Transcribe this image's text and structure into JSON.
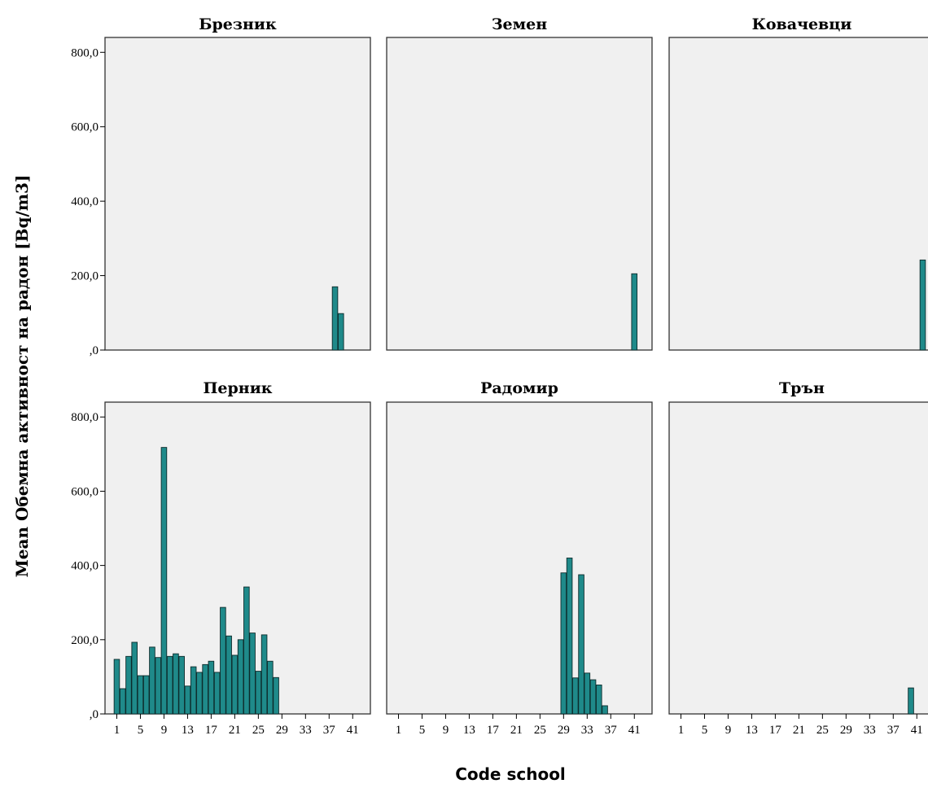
{
  "chart_data": {
    "type": "bar",
    "layout": "small-multiples 2x3",
    "xlabel": "Code school",
    "ylabel": "Mean Обемна активност на радон [Bq/m3]",
    "ylim": [
      0,
      840
    ],
    "yticks": [
      0,
      200,
      400,
      600,
      800
    ],
    "ytick_labels": [
      ",0",
      "200,0",
      "400,0",
      "600,0",
      "800,0"
    ],
    "xlim": [
      -1,
      44
    ],
    "xticks": [
      1,
      5,
      9,
      13,
      17,
      21,
      25,
      29,
      33,
      37,
      41
    ],
    "xtick_labels": [
      "1",
      "5",
      "9",
      "13",
      "17",
      "21",
      "25",
      "29",
      "33",
      "37",
      "41"
    ],
    "bar_color": "#1f8a8a",
    "panel_background": "#f0f0f0",
    "grid": false,
    "panels": [
      {
        "title": "Брезник",
        "bars": [
          {
            "x": 38,
            "y": 170
          },
          {
            "x": 39,
            "y": 98
          }
        ]
      },
      {
        "title": "Земен",
        "bars": [
          {
            "x": 41,
            "y": 205
          }
        ]
      },
      {
        "title": "Ковачевци",
        "bars": [
          {
            "x": 42,
            "y": 242
          }
        ]
      },
      {
        "title": "Перник",
        "bars": [
          {
            "x": 1,
            "y": 147
          },
          {
            "x": 2,
            "y": 68
          },
          {
            "x": 3,
            "y": 155
          },
          {
            "x": 4,
            "y": 193
          },
          {
            "x": 5,
            "y": 103
          },
          {
            "x": 6,
            "y": 103
          },
          {
            "x": 7,
            "y": 180
          },
          {
            "x": 8,
            "y": 152
          },
          {
            "x": 9,
            "y": 718
          },
          {
            "x": 10,
            "y": 155
          },
          {
            "x": 11,
            "y": 162
          },
          {
            "x": 12,
            "y": 155
          },
          {
            "x": 13,
            "y": 75
          },
          {
            "x": 14,
            "y": 127
          },
          {
            "x": 15,
            "y": 112
          },
          {
            "x": 16,
            "y": 133
          },
          {
            "x": 17,
            "y": 142
          },
          {
            "x": 18,
            "y": 112
          },
          {
            "x": 19,
            "y": 287
          },
          {
            "x": 20,
            "y": 210
          },
          {
            "x": 21,
            "y": 158
          },
          {
            "x": 22,
            "y": 200
          },
          {
            "x": 23,
            "y": 342
          },
          {
            "x": 24,
            "y": 218
          },
          {
            "x": 25,
            "y": 115
          },
          {
            "x": 26,
            "y": 213
          },
          {
            "x": 27,
            "y": 142
          },
          {
            "x": 28,
            "y": 98
          }
        ]
      },
      {
        "title": "Радомир",
        "bars": [
          {
            "x": 29,
            "y": 380
          },
          {
            "x": 30,
            "y": 420
          },
          {
            "x": 31,
            "y": 97
          },
          {
            "x": 32,
            "y": 375
          },
          {
            "x": 33,
            "y": 110
          },
          {
            "x": 34,
            "y": 92
          },
          {
            "x": 35,
            "y": 78
          },
          {
            "x": 36,
            "y": 22
          }
        ]
      },
      {
        "title": "Трън",
        "bars": [
          {
            "x": 40,
            "y": 70
          }
        ]
      }
    ]
  }
}
